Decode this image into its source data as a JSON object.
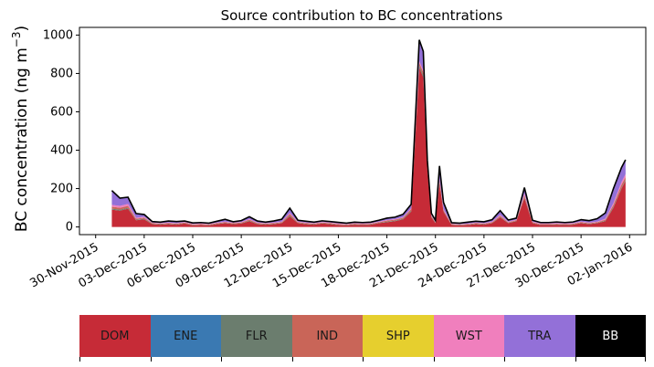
{
  "chart_data": {
    "type": "area",
    "title": "Source contribution to BC concentrations",
    "ylabel_main": "BC concentration (ng m",
    "ylabel_sup": "−3",
    "ylabel_end": ")",
    "xlabel": "",
    "ylim": [
      -40,
      1040
    ],
    "yticks": [
      0,
      200,
      400,
      600,
      800,
      1000
    ],
    "xlim": [
      "2015-11-29",
      "2016-01-03"
    ],
    "xticks": [
      {
        "date": "2015-11-30",
        "label": "30-Nov-2015"
      },
      {
        "date": "2015-12-03",
        "label": "03-Dec-2015"
      },
      {
        "date": "2015-12-06",
        "label": "06-Dec-2015"
      },
      {
        "date": "2015-12-09",
        "label": "09-Dec-2015"
      },
      {
        "date": "2015-12-12",
        "label": "12-Dec-2015"
      },
      {
        "date": "2015-12-15",
        "label": "15-Dec-2015"
      },
      {
        "date": "2015-12-18",
        "label": "18-Dec-2015"
      },
      {
        "date": "2015-12-21",
        "label": "21-Dec-2015"
      },
      {
        "date": "2015-12-24",
        "label": "24-Dec-2015"
      },
      {
        "date": "2015-12-27",
        "label": "27-Dec-2015"
      },
      {
        "date": "2015-12-30",
        "label": "30-Dec-2015"
      },
      {
        "date": "2016-01-02",
        "label": "02-Jan-2016"
      }
    ],
    "x": [
      "2015-12-01",
      "2015-12-01 12:00",
      "2015-12-02",
      "2015-12-02 12:00",
      "2015-12-03",
      "2015-12-03 12:00",
      "2015-12-04",
      "2015-12-04 12:00",
      "2015-12-05",
      "2015-12-05 12:00",
      "2015-12-06",
      "2015-12-06 12:00",
      "2015-12-07",
      "2015-12-07 12:00",
      "2015-12-08",
      "2015-12-08 12:00",
      "2015-12-09",
      "2015-12-09 12:00",
      "2015-12-10",
      "2015-12-10 12:00",
      "2015-12-11",
      "2015-12-11 12:00",
      "2015-12-12",
      "2015-12-12 12:00",
      "2015-12-13",
      "2015-12-13 12:00",
      "2015-12-14",
      "2015-12-14 12:00",
      "2015-12-15",
      "2015-12-15 12:00",
      "2015-12-16",
      "2015-12-16 12:00",
      "2015-12-17",
      "2015-12-17 12:00",
      "2015-12-18",
      "2015-12-18 12:00",
      "2015-12-19",
      "2015-12-19 12:00",
      "2015-12-20",
      "2015-12-20 06:00",
      "2015-12-20 12:00",
      "2015-12-20 18:00",
      "2015-12-21",
      "2015-12-21 06:00",
      "2015-12-21 12:00",
      "2015-12-22",
      "2015-12-22 12:00",
      "2015-12-23",
      "2015-12-23 12:00",
      "2015-12-24",
      "2015-12-24 12:00",
      "2015-12-25",
      "2015-12-25 12:00",
      "2015-12-26",
      "2015-12-26 12:00",
      "2015-12-27",
      "2015-12-27 12:00",
      "2015-12-28",
      "2015-12-28 12:00",
      "2015-12-29",
      "2015-12-29 12:00",
      "2015-12-30",
      "2015-12-30 12:00",
      "2015-12-31",
      "2015-12-31 12:00",
      "2016-01-01",
      "2016-01-01 12:00",
      "2016-01-01 18:00"
    ],
    "series": [
      {
        "name": "DOM",
        "color": "#c62b37",
        "values": [
          90,
          85,
          95,
          35,
          40,
          15,
          12,
          15,
          12,
          18,
          8,
          10,
          8,
          15,
          20,
          15,
          18,
          30,
          15,
          12,
          15,
          20,
          55,
          20,
          15,
          12,
          18,
          15,
          10,
          8,
          12,
          10,
          12,
          20,
          25,
          30,
          40,
          80,
          830,
          780,
          300,
          50,
          20,
          230,
          80,
          10,
          8,
          10,
          15,
          12,
          20,
          50,
          20,
          30,
          150,
          20,
          10,
          10,
          12,
          10,
          12,
          20,
          15,
          20,
          30,
          100,
          200,
          240
        ]
      },
      {
        "name": "ENE",
        "color": "#3a79b2",
        "values": [
          0,
          0,
          0,
          0,
          0,
          0,
          0,
          0,
          0,
          0,
          0,
          0,
          0,
          0,
          0,
          0,
          0,
          0,
          0,
          0,
          0,
          0,
          0,
          0,
          0,
          0,
          0,
          0,
          0,
          0,
          0,
          0,
          0,
          0,
          0,
          0,
          0,
          0,
          0,
          0,
          0,
          0,
          0,
          0,
          0,
          0,
          0,
          0,
          0,
          0,
          0,
          0,
          0,
          0,
          0,
          0,
          0,
          0,
          0,
          0,
          0,
          0,
          0,
          0,
          0,
          0,
          0,
          0
        ]
      },
      {
        "name": "FLR",
        "color": "#6b7d6e",
        "values": [
          5,
          5,
          5,
          3,
          3,
          2,
          2,
          2,
          2,
          2,
          2,
          2,
          2,
          2,
          2,
          2,
          2,
          3,
          2,
          2,
          2,
          2,
          5,
          2,
          2,
          2,
          2,
          2,
          2,
          2,
          2,
          2,
          2,
          2,
          3,
          3,
          3,
          5,
          10,
          10,
          5,
          3,
          2,
          5,
          3,
          2,
          2,
          2,
          2,
          2,
          2,
          3,
          2,
          2,
          5,
          2,
          2,
          2,
          2,
          2,
          2,
          2,
          2,
          2,
          3,
          5,
          5,
          5
        ]
      },
      {
        "name": "IND",
        "color": "#c96558",
        "values": [
          10,
          10,
          10,
          5,
          5,
          3,
          3,
          3,
          3,
          3,
          3,
          3,
          3,
          3,
          3,
          3,
          3,
          5,
          3,
          3,
          3,
          3,
          8,
          3,
          3,
          3,
          3,
          3,
          3,
          3,
          3,
          3,
          3,
          3,
          5,
          5,
          5,
          8,
          15,
          15,
          8,
          5,
          3,
          10,
          5,
          3,
          3,
          3,
          3,
          3,
          3,
          5,
          3,
          3,
          10,
          3,
          3,
          3,
          3,
          3,
          3,
          3,
          3,
          3,
          5,
          10,
          15,
          15
        ]
      },
      {
        "name": "SHP",
        "color": "#e6cf2e",
        "values": [
          0,
          0,
          0,
          0,
          0,
          0,
          0,
          0,
          0,
          0,
          0,
          0,
          0,
          0,
          0,
          0,
          0,
          0,
          0,
          0,
          0,
          0,
          0,
          0,
          0,
          0,
          0,
          0,
          0,
          0,
          0,
          0,
          0,
          0,
          0,
          0,
          0,
          0,
          0,
          0,
          0,
          0,
          0,
          0,
          0,
          0,
          0,
          0,
          0,
          0,
          0,
          0,
          0,
          0,
          0,
          0,
          0,
          0,
          0,
          0,
          0,
          0,
          0,
          0,
          0,
          0,
          0,
          0
        ]
      },
      {
        "name": "WST",
        "color": "#f07fbd",
        "values": [
          10,
          10,
          10,
          5,
          5,
          3,
          3,
          3,
          3,
          3,
          3,
          3,
          3,
          3,
          3,
          3,
          3,
          3,
          3,
          3,
          3,
          3,
          5,
          3,
          3,
          3,
          3,
          3,
          3,
          3,
          3,
          3,
          3,
          3,
          3,
          3,
          3,
          5,
          10,
          10,
          5,
          3,
          2,
          8,
          5,
          2,
          2,
          2,
          3,
          3,
          3,
          5,
          3,
          3,
          10,
          3,
          3,
          3,
          3,
          3,
          3,
          3,
          3,
          3,
          5,
          10,
          15,
          15
        ]
      },
      {
        "name": "TRA",
        "color": "#9370d8",
        "values": [
          75,
          40,
          35,
          22,
          12,
          5,
          5,
          8,
          8,
          5,
          5,
          5,
          4,
          7,
          12,
          4,
          7,
          12,
          8,
          5,
          8,
          12,
          25,
          7,
          7,
          5,
          6,
          5,
          6,
          4,
          5,
          5,
          5,
          7,
          10,
          10,
          15,
          20,
          110,
          100,
          30,
          10,
          8,
          65,
          35,
          5,
          5,
          8,
          7,
          7,
          10,
          22,
          8,
          8,
          30,
          7,
          5,
          5,
          6,
          5,
          6,
          10,
          10,
          15,
          30,
          75,
          75,
          75
        ]
      },
      {
        "name": "BB",
        "color": "#000000",
        "values": [
          0,
          0,
          0,
          0,
          0,
          0,
          0,
          0,
          0,
          0,
          0,
          0,
          0,
          0,
          0,
          0,
          0,
          0,
          0,
          0,
          0,
          0,
          0,
          0,
          0,
          0,
          0,
          0,
          0,
          0,
          0,
          0,
          0,
          0,
          0,
          0,
          0,
          0,
          0,
          0,
          0,
          0,
          0,
          0,
          0,
          0,
          0,
          0,
          0,
          0,
          0,
          0,
          0,
          0,
          0,
          0,
          0,
          0,
          0,
          0,
          0,
          0,
          0,
          0,
          0,
          0,
          0,
          0
        ]
      }
    ],
    "total_line_color": "#000000",
    "legend": {
      "placement": "bottom",
      "items": [
        {
          "label": "DOM",
          "color": "#c62b37",
          "text_color": "#1a1a1a"
        },
        {
          "label": "ENE",
          "color": "#3a79b2",
          "text_color": "#1a1a1a"
        },
        {
          "label": "FLR",
          "color": "#6b7d6e",
          "text_color": "#1a1a1a"
        },
        {
          "label": "IND",
          "color": "#c96558",
          "text_color": "#1a1a1a"
        },
        {
          "label": "SHP",
          "color": "#e6cf2e",
          "text_color": "#1a1a1a"
        },
        {
          "label": "WST",
          "color": "#f07fbd",
          "text_color": "#1a1a1a"
        },
        {
          "label": "TRA",
          "color": "#9370d8",
          "text_color": "#1a1a1a"
        },
        {
          "label": "BB",
          "color": "#000000",
          "text_color": "#ffffff"
        }
      ]
    },
    "grid": false
  }
}
